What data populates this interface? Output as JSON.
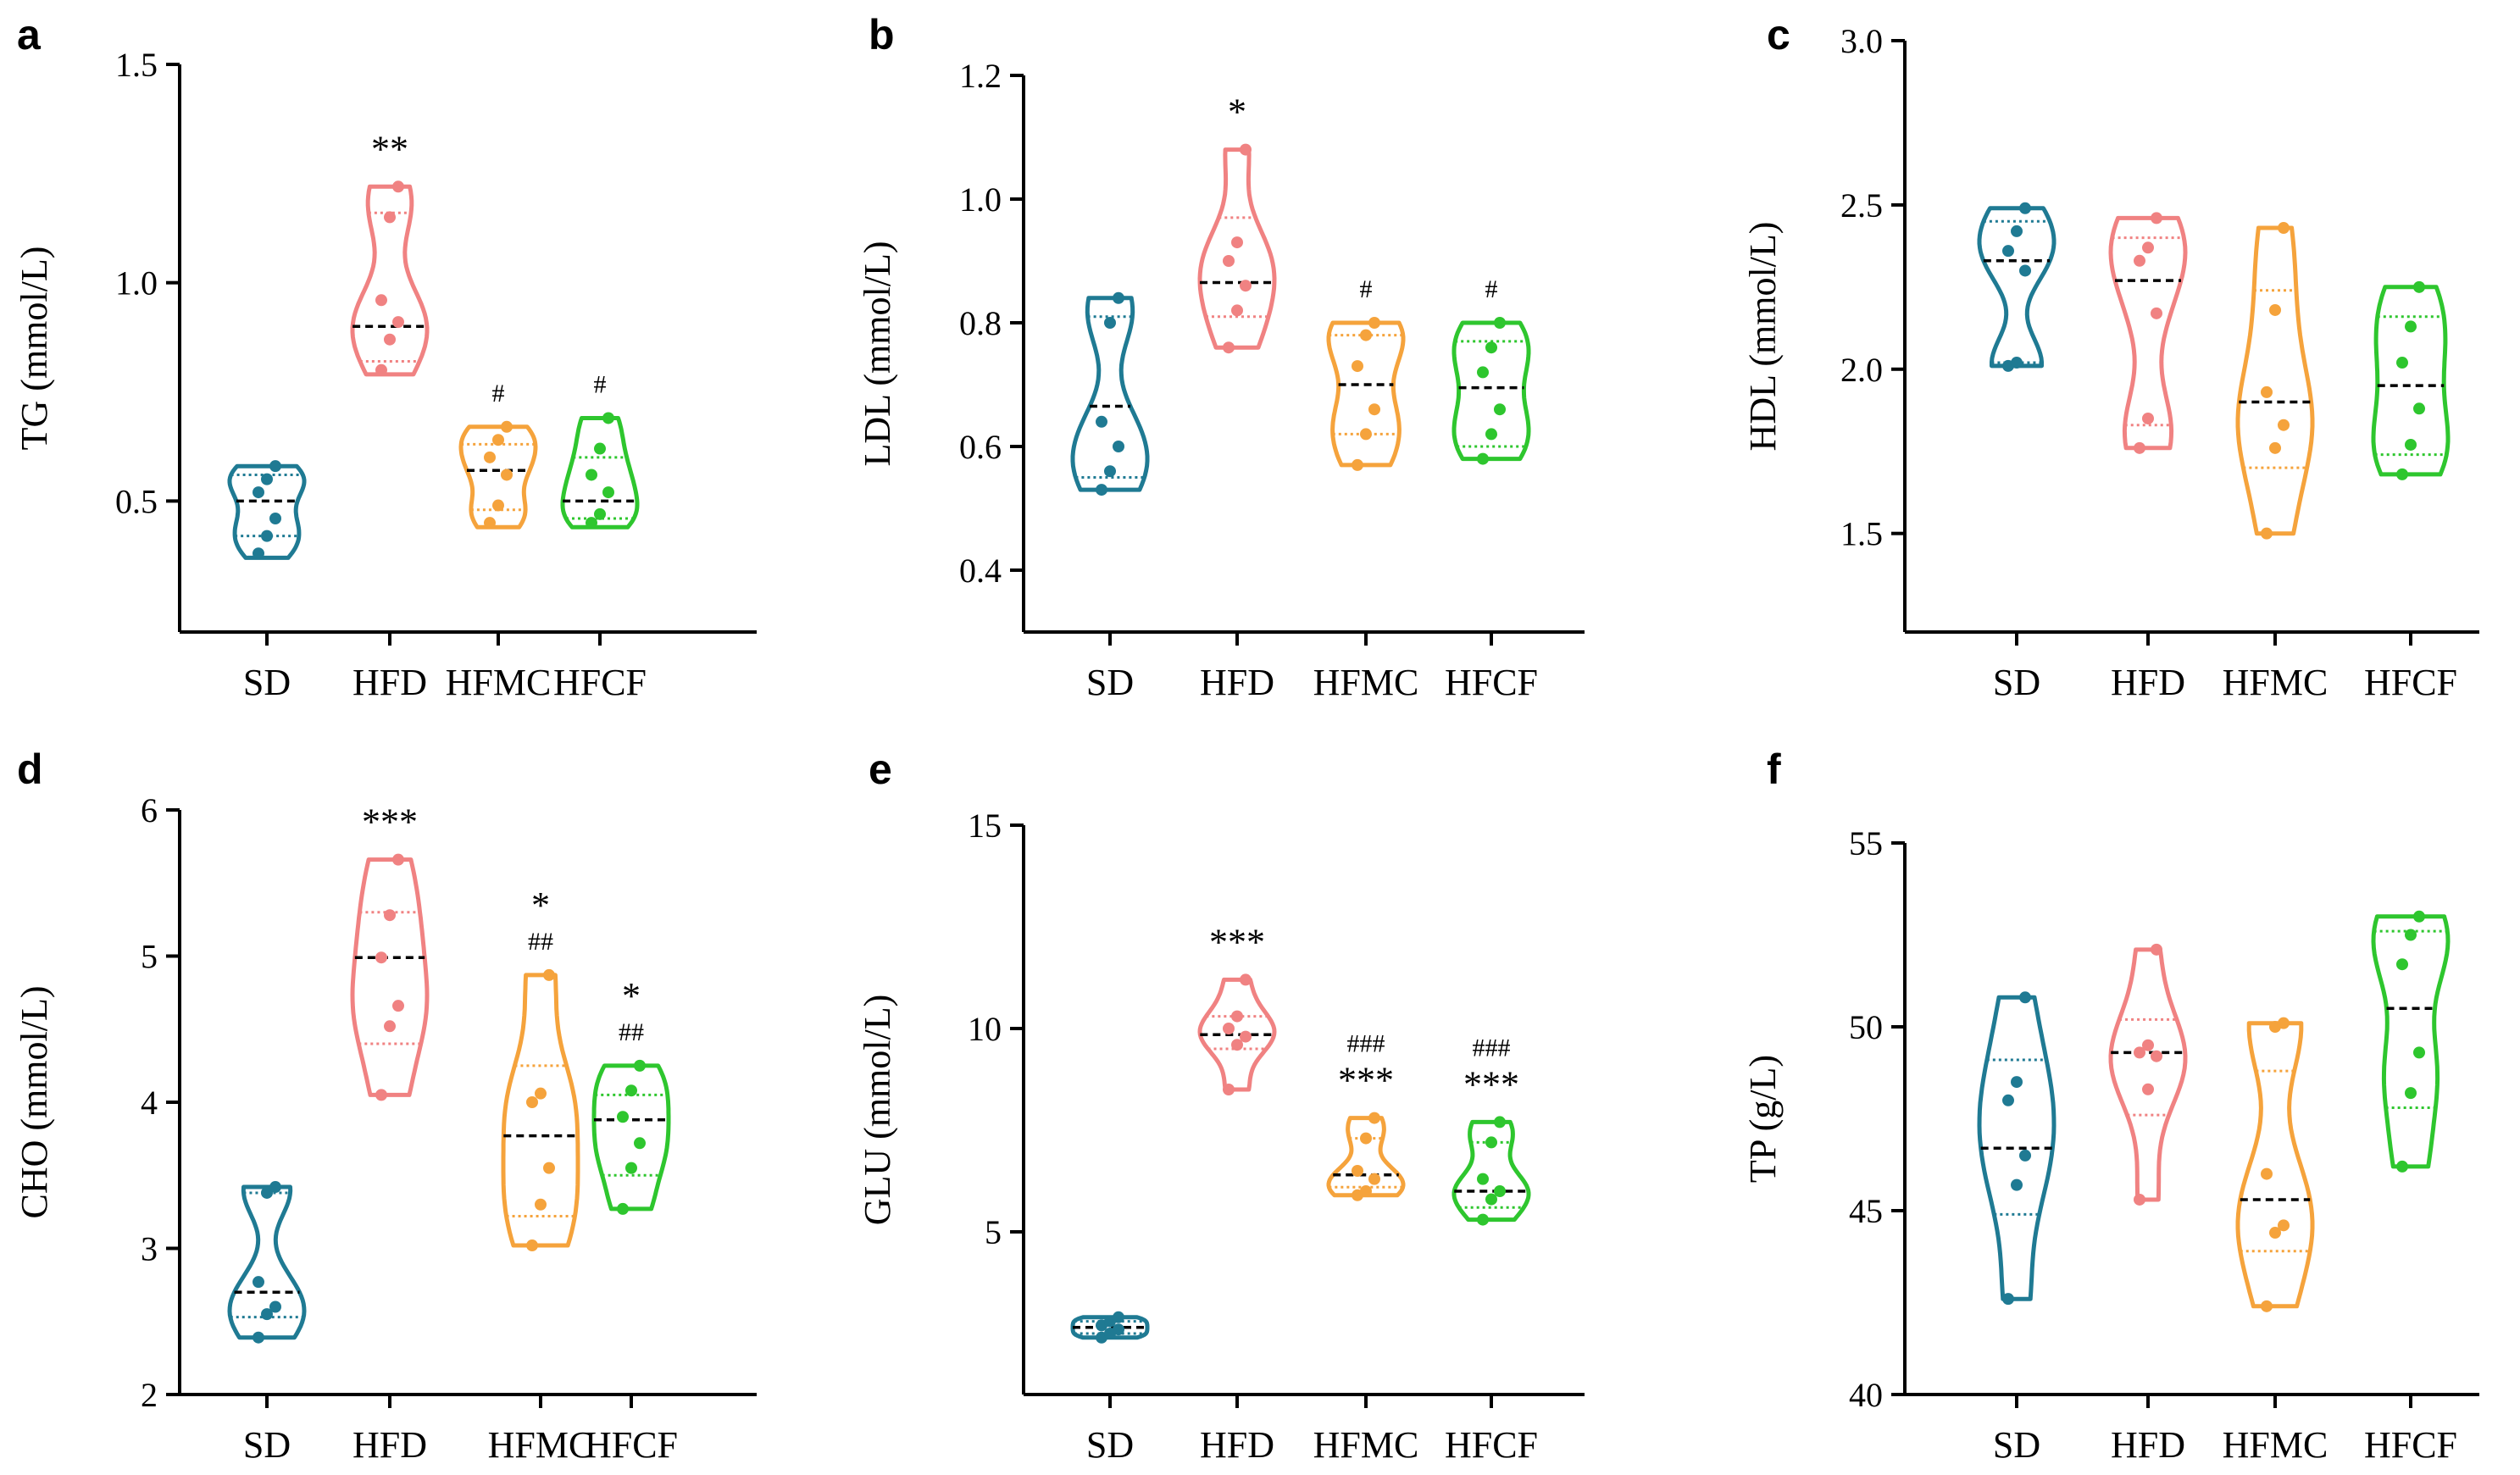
{
  "figure": {
    "groups": [
      "SD",
      "HFD",
      "HFMC",
      "HFCF"
    ]
  },
  "colors": {
    "SD": "#1f7a93",
    "HFD": "#f08282",
    "HFMC": "#f5a33c",
    "HFCF": "#2ec62e",
    "median": "#000000"
  },
  "chart_data": [
    {
      "panel": "a",
      "type": "violin",
      "ylabel": "TG (mmol/L)",
      "ylim": [
        0.2,
        1.5
      ],
      "yticks": [
        "0.5",
        "1.0",
        "1.5"
      ],
      "ytick_values": [
        0.5,
        1.0,
        1.5
      ],
      "categories": [
        "SD",
        "HFD",
        "HFMC",
        "HFCF"
      ],
      "series": [
        {
          "name": "SD",
          "min": 0.37,
          "max": 0.58,
          "median": 0.5,
          "q1": 0.42,
          "q3": 0.56,
          "points": [
            0.38,
            0.42,
            0.46,
            0.52,
            0.55,
            0.58
          ]
        },
        {
          "name": "HFD",
          "min": 0.79,
          "max": 1.22,
          "median": 0.9,
          "q1": 0.82,
          "q3": 1.16,
          "points": [
            0.8,
            0.87,
            0.91,
            0.96,
            1.15,
            1.22
          ]
        },
        {
          "name": "HFMC",
          "min": 0.44,
          "max": 0.67,
          "median": 0.57,
          "q1": 0.48,
          "q3": 0.63,
          "points": [
            0.45,
            0.49,
            0.56,
            0.6,
            0.64,
            0.67
          ]
        },
        {
          "name": "HFCF",
          "min": 0.44,
          "max": 0.69,
          "median": 0.5,
          "q1": 0.46,
          "q3": 0.6,
          "points": [
            0.45,
            0.47,
            0.52,
            0.56,
            0.62,
            0.69
          ]
        }
      ],
      "annotations": [
        {
          "category": "HFD",
          "lines": [
            "**"
          ]
        },
        {
          "category": "HFMC",
          "lines": [
            "#"
          ]
        },
        {
          "category": "HFCF",
          "lines": [
            "#"
          ]
        }
      ]
    },
    {
      "panel": "b",
      "type": "violin",
      "ylabel": "LDL (mmol/L)",
      "ylim": [
        0.3,
        1.2
      ],
      "yticks": [
        "0.4",
        "0.6",
        "0.8",
        "1.0",
        "1.2"
      ],
      "ytick_values": [
        0.4,
        0.6,
        0.8,
        1.0,
        1.2
      ],
      "categories": [
        "SD",
        "HFD",
        "HFMC",
        "HFCF"
      ],
      "series": [
        {
          "name": "SD",
          "min": 0.53,
          "max": 0.84,
          "median": 0.665,
          "q1": 0.55,
          "q3": 0.81,
          "points": [
            0.53,
            0.56,
            0.6,
            0.64,
            0.8,
            0.84
          ]
        },
        {
          "name": "HFD",
          "min": 0.76,
          "max": 1.08,
          "median": 0.865,
          "q1": 0.81,
          "q3": 0.97,
          "points": [
            0.76,
            0.82,
            0.86,
            0.9,
            0.93,
            1.08
          ]
        },
        {
          "name": "HFMC",
          "min": 0.57,
          "max": 0.8,
          "median": 0.7,
          "q1": 0.62,
          "q3": 0.78,
          "points": [
            0.57,
            0.62,
            0.66,
            0.73,
            0.78,
            0.8
          ]
        },
        {
          "name": "HFCF",
          "min": 0.58,
          "max": 0.8,
          "median": 0.695,
          "q1": 0.6,
          "q3": 0.77,
          "points": [
            0.58,
            0.62,
            0.66,
            0.72,
            0.76,
            0.8
          ]
        }
      ],
      "annotations": [
        {
          "category": "HFD",
          "lines": [
            "*"
          ]
        },
        {
          "category": "HFMC",
          "lines": [
            "#"
          ]
        },
        {
          "category": "HFCF",
          "lines": [
            "#"
          ]
        }
      ]
    },
    {
      "panel": "c",
      "type": "violin",
      "ylabel": "HDL (mmol/L)",
      "ylim": [
        1.2,
        3.0
      ],
      "yticks": [
        "1.5",
        "2.0",
        "2.5",
        "3.0"
      ],
      "ytick_values": [
        1.5,
        2.0,
        2.5,
        3.0
      ],
      "categories": [
        "SD",
        "HFD",
        "HFMC",
        "HFCF"
      ],
      "series": [
        {
          "name": "SD",
          "min": 2.01,
          "max": 2.49,
          "median": 2.33,
          "q1": 2.02,
          "q3": 2.45,
          "points": [
            2.01,
            2.02,
            2.3,
            2.36,
            2.42,
            2.49
          ]
        },
        {
          "name": "HFD",
          "min": 1.76,
          "max": 2.46,
          "median": 2.27,
          "q1": 1.83,
          "q3": 2.4,
          "points": [
            1.76,
            1.85,
            2.17,
            2.33,
            2.37,
            2.46
          ]
        },
        {
          "name": "HFMC",
          "min": 1.5,
          "max": 2.43,
          "median": 1.9,
          "q1": 1.7,
          "q3": 2.24,
          "points": [
            1.5,
            1.76,
            1.83,
            1.93,
            2.18,
            2.43
          ]
        },
        {
          "name": "HFCF",
          "min": 1.68,
          "max": 2.25,
          "median": 1.95,
          "q1": 1.74,
          "q3": 2.16,
          "points": [
            1.68,
            1.77,
            1.88,
            2.02,
            2.13,
            2.25
          ]
        }
      ],
      "annotations": []
    },
    {
      "panel": "d",
      "type": "violin",
      "ylabel": "CHO (mmol/L)",
      "ylim": [
        2,
        6
      ],
      "yticks": [
        "2",
        "3",
        "4",
        "5",
        "6"
      ],
      "ytick_values": [
        2,
        3,
        4,
        5,
        6
      ],
      "categories": [
        "SD",
        "HFD",
        "HFMC",
        "HFCF"
      ],
      "series": [
        {
          "name": "SD",
          "min": 2.39,
          "max": 3.42,
          "median": 2.7,
          "q1": 2.53,
          "q3": 3.38,
          "points": [
            2.39,
            2.55,
            2.6,
            2.77,
            3.38,
            3.42
          ]
        },
        {
          "name": "HFD",
          "min": 4.05,
          "max": 5.66,
          "median": 4.99,
          "q1": 4.4,
          "q3": 5.3,
          "points": [
            4.05,
            4.52,
            4.66,
            4.99,
            5.28,
            5.66
          ]
        },
        {
          "name": "HFMC",
          "min": 3.02,
          "max": 4.87,
          "median": 3.77,
          "q1": 3.22,
          "q3": 4.25,
          "points": [
            3.02,
            3.3,
            3.55,
            4.0,
            4.06,
            4.87
          ]
        },
        {
          "name": "HFCF",
          "min": 3.27,
          "max": 4.25,
          "median": 3.88,
          "q1": 3.5,
          "q3": 4.05,
          "points": [
            3.27,
            3.55,
            3.72,
            3.9,
            4.08,
            4.25
          ]
        }
      ],
      "annotations": [
        {
          "category": "HFD",
          "lines": [
            "***"
          ]
        },
        {
          "category": "HFMC",
          "lines": [
            "*",
            "##"
          ]
        },
        {
          "category": "HFCF",
          "lines": [
            "*",
            "##"
          ]
        }
      ]
    },
    {
      "panel": "e",
      "type": "violin",
      "ylabel": "GLU (mmol/L)",
      "ylim": [
        1,
        15
      ],
      "yticks": [
        "5",
        "10",
        "15"
      ],
      "ytick_values": [
        5,
        10,
        15
      ],
      "categories": [
        "SD",
        "HFD",
        "HFMC",
        "HFCF"
      ],
      "series": [
        {
          "name": "SD",
          "min": 2.4,
          "max": 2.9,
          "median": 2.65,
          "q1": 2.5,
          "q3": 2.8,
          "points": [
            2.4,
            2.5,
            2.6,
            2.7,
            2.8,
            2.9
          ]
        },
        {
          "name": "HFD",
          "min": 8.5,
          "max": 11.2,
          "median": 9.85,
          "q1": 9.5,
          "q3": 10.3,
          "points": [
            8.5,
            9.6,
            9.8,
            10.0,
            10.3,
            11.2
          ]
        },
        {
          "name": "HFMC",
          "min": 5.9,
          "max": 7.8,
          "median": 6.4,
          "q1": 6.1,
          "q3": 7.3,
          "points": [
            5.9,
            6.0,
            6.3,
            6.5,
            7.3,
            7.8
          ]
        },
        {
          "name": "HFCF",
          "min": 5.3,
          "max": 7.7,
          "median": 6.0,
          "q1": 5.6,
          "q3": 7.2,
          "points": [
            5.3,
            5.8,
            6.0,
            6.3,
            7.2,
            7.7
          ]
        }
      ],
      "annotations": [
        {
          "category": "HFD",
          "lines": [
            "***"
          ]
        },
        {
          "category": "HFMC",
          "lines": [
            "###",
            "***"
          ]
        },
        {
          "category": "HFCF",
          "lines": [
            "###",
            "***"
          ]
        }
      ]
    },
    {
      "panel": "f",
      "type": "violin",
      "ylabel": "TP (g/L)",
      "ylim": [
        40,
        55
      ],
      "yticks": [
        "40",
        "45",
        "50",
        "55"
      ],
      "ytick_values": [
        40,
        45,
        50,
        55
      ],
      "categories": [
        "SD",
        "HFD",
        "HFMC",
        "HFCF"
      ],
      "series": [
        {
          "name": "SD",
          "min": 42.6,
          "max": 50.8,
          "median": 46.7,
          "q1": 44.9,
          "q3": 49.1,
          "points": [
            42.6,
            45.7,
            46.5,
            48.0,
            48.5,
            50.8
          ]
        },
        {
          "name": "HFD",
          "min": 45.3,
          "max": 52.1,
          "median": 49.3,
          "q1": 47.6,
          "q3": 50.2,
          "points": [
            45.3,
            48.3,
            49.2,
            49.3,
            49.5,
            52.1
          ]
        },
        {
          "name": "HFMC",
          "min": 42.4,
          "max": 50.1,
          "median": 45.3,
          "q1": 43.9,
          "q3": 48.8,
          "points": [
            42.4,
            44.4,
            44.6,
            46.0,
            50.0,
            50.1
          ]
        },
        {
          "name": "HFCF",
          "min": 46.2,
          "max": 53.0,
          "median": 50.5,
          "q1": 47.8,
          "q3": 52.6,
          "points": [
            46.2,
            48.2,
            49.3,
            51.7,
            52.5,
            53.0
          ]
        }
      ],
      "annotations": []
    }
  ]
}
